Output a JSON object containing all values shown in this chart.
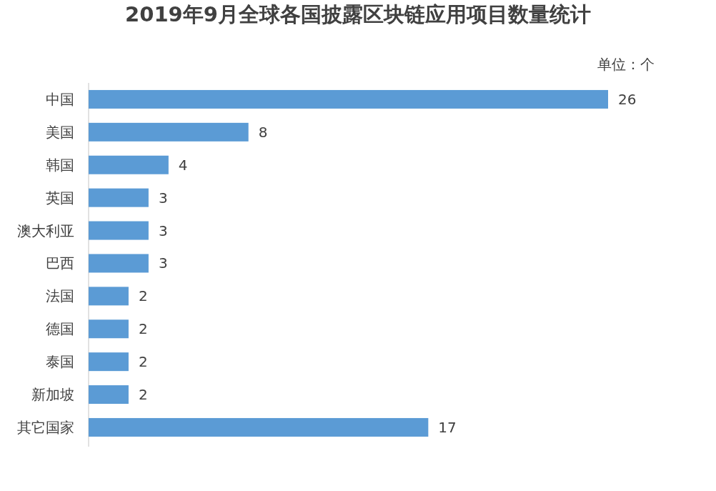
{
  "chart_data": {
    "type": "bar",
    "orientation": "horizontal",
    "title": "2019年9月全球各国披露区块链应用项目数量统计",
    "annotations": [
      "单位：个"
    ],
    "categories": [
      "中国",
      "美国",
      "韩国",
      "英国",
      "澳大利亚",
      "巴西",
      "法国",
      "德国",
      "泰国",
      "新加坡",
      "其它国家"
    ],
    "values": [
      26,
      8,
      4,
      3,
      3,
      3,
      2,
      2,
      2,
      2,
      17
    ],
    "color": "#5b9bd5",
    "data_labels": true
  }
}
